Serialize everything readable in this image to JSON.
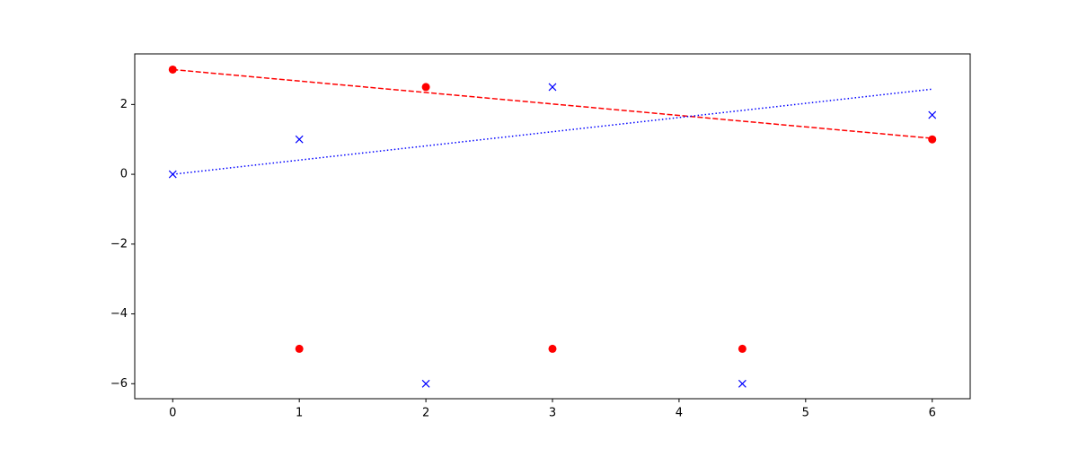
{
  "chart_data": {
    "type": "scatter",
    "xlim": [
      -0.3,
      6.3
    ],
    "ylim": [
      -6.43,
      3.45
    ],
    "xticks": [
      0,
      1,
      2,
      3,
      4,
      5,
      6
    ],
    "yticks": [
      {
        "value": -6,
        "label": "−6"
      },
      {
        "value": -4,
        "label": "−4"
      },
      {
        "value": -2,
        "label": "−2"
      },
      0,
      2
    ],
    "series": [
      {
        "color": "#ff0000",
        "marker": "o",
        "x": [
          0,
          1,
          2,
          3,
          4.5,
          6
        ],
        "values": [
          3,
          -5,
          2.5,
          -5,
          -5,
          1
        ]
      },
      {
        "color": "#0000ff",
        "marker": "x",
        "x": [
          0,
          1,
          2,
          3,
          4.5,
          6
        ],
        "values": [
          0,
          1,
          -6,
          2.5,
          -6,
          1.7
        ]
      },
      {
        "color": "#ff0000",
        "line_style": "dashed",
        "x": [
          0,
          6
        ],
        "values": [
          3,
          1.03
        ]
      },
      {
        "color": "#0000ff",
        "line_style": "dotted",
        "x": [
          0,
          6
        ],
        "values": [
          0,
          2.44
        ]
      }
    ]
  }
}
